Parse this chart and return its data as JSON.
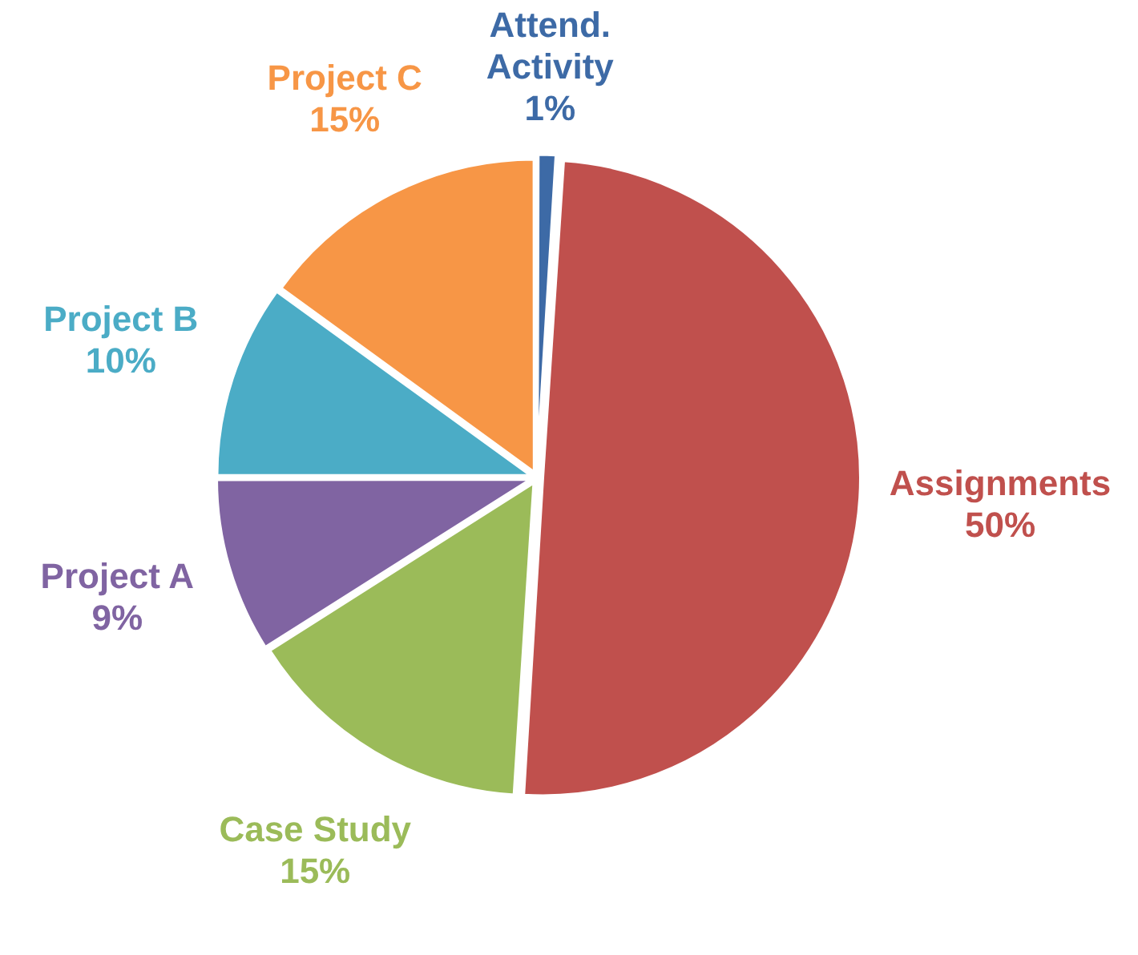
{
  "chart_data": {
    "type": "pie",
    "categories": [
      "Attend. Activity",
      "Assignments",
      "Case Study",
      "Project A",
      "Project B",
      "Project C"
    ],
    "values": [
      1,
      50,
      15,
      9,
      10,
      15
    ],
    "value_labels": [
      "1%",
      "50%",
      "15%",
      "9%",
      "10%",
      "15%"
    ],
    "colors": [
      "#3d6aa6",
      "#c0504d",
      "#9bbb59",
      "#8064a2",
      "#4bacc6",
      "#f79646"
    ],
    "legend": false
  }
}
